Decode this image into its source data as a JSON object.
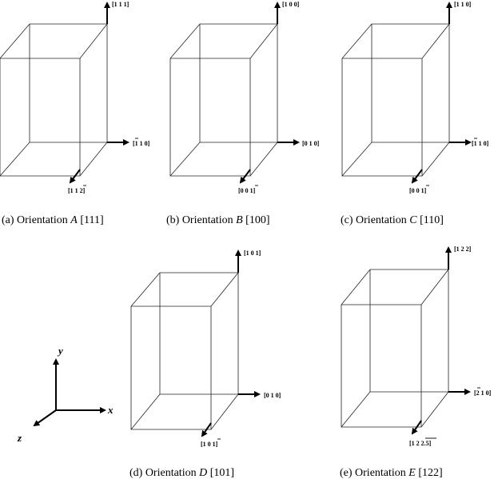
{
  "panels": [
    {
      "id": "a",
      "caption_prefix": "(a) Orientation ",
      "caption_letter": "A",
      "caption_suffix": " [111]",
      "axis_up": "[1 1 1]",
      "axis_right": "[1 1 0]",
      "axis_right_bar": "1",
      "axis_front": "[1 1 2]",
      "axis_front_bar": "2"
    },
    {
      "id": "b",
      "caption_prefix": "(b) Orientation ",
      "caption_letter": "B",
      "caption_suffix": " [100]",
      "axis_up": "[1 0 0]",
      "axis_right": "[0 1 0]",
      "axis_front": "[0 0 1]",
      "axis_front_bar": "1"
    },
    {
      "id": "c",
      "caption_prefix": "(c) Orientation ",
      "caption_letter": "C",
      "caption_suffix": " [110]",
      "axis_up": "[1 1 0]",
      "axis_right": "[1 1 0]",
      "axis_right_bar": "1",
      "axis_front": "[0 0 1]",
      "axis_front_bar": "1"
    },
    {
      "id": "d",
      "caption_prefix": "(d) Orientation ",
      "caption_letter": "D",
      "caption_suffix": " [101]",
      "axis_up": "[1 0 1]",
      "axis_right": "[0 1 0]",
      "axis_front": "[1 0 1]",
      "axis_front_bar": "1"
    },
    {
      "id": "e",
      "caption_prefix": "(e) Orientation ",
      "caption_letter": "E",
      "caption_suffix": " [122]",
      "axis_up": "[1 2 2]",
      "axis_right": "[2 1 0]",
      "axis_right_bar": "2",
      "axis_front": "[1 2 2.5]",
      "axis_front_bar": "2.5"
    }
  ],
  "reference_axes": {
    "x": "x",
    "y": "y",
    "z": "z"
  }
}
